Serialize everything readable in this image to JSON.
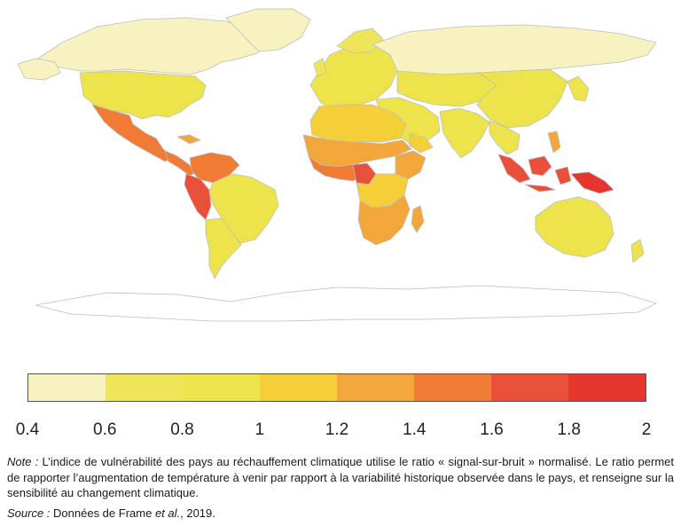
{
  "legend": {
    "ticks": [
      "0.4",
      "0.6",
      "0.8",
      "1",
      "1.2",
      "1.4",
      "1.6",
      "1.8",
      "2"
    ],
    "colors": [
      "#f7f2bf",
      "#efe559",
      "#ede44b",
      "#f5cf38",
      "#f3a73a",
      "#ef7b34",
      "#e9503a",
      "#e6352f"
    ]
  },
  "map": {
    "ocean_color": "#ffffff",
    "border_color": "#bdbdbd",
    "antarctica_color": "#ffffff"
  },
  "note": {
    "label": "Note :",
    "text": " L’indice de vulnérabilité des pays au réchauffement climatique utilise le ratio « signal-sur-bruit » normalisé. Le ratio permet de rapporter l’augmentation de température à venir par rapport à la variabilité historique observée dans le pays, et renseigne sur la sensibilité au changement climatique."
  },
  "source": {
    "label": "Source :",
    "prefix": " Données de Frame ",
    "etal": "et al.",
    "suffix": ", 2019."
  }
}
